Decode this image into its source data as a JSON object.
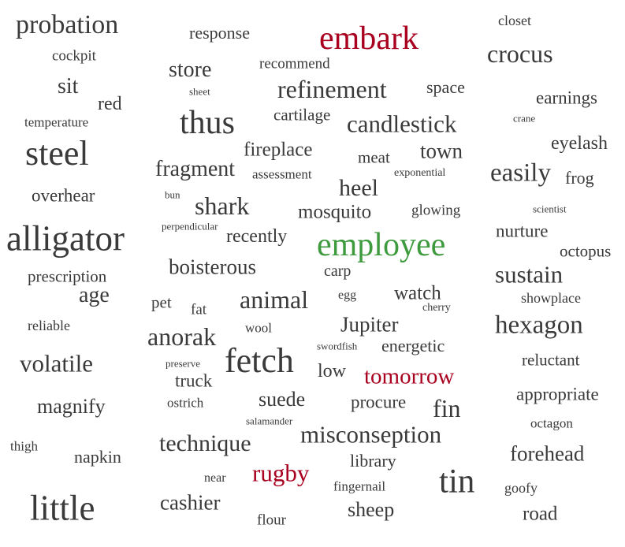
{
  "colors": {
    "default": "#3a3a3a",
    "red": "#a8001e",
    "green": "#3d9a3d"
  },
  "words": [
    {
      "text": "probation",
      "color": "default"
    },
    {
      "text": "response",
      "color": "default"
    },
    {
      "text": "embark",
      "color": "red"
    },
    {
      "text": "closet",
      "color": "default"
    },
    {
      "text": "cockpit",
      "color": "default"
    },
    {
      "text": "recommend",
      "color": "default"
    },
    {
      "text": "store",
      "color": "default"
    },
    {
      "text": "crocus",
      "color": "default"
    },
    {
      "text": "sit",
      "color": "default"
    },
    {
      "text": "sheet",
      "color": "default"
    },
    {
      "text": "refinement",
      "color": "default"
    },
    {
      "text": "space",
      "color": "default"
    },
    {
      "text": "red",
      "color": "default"
    },
    {
      "text": "earnings",
      "color": "default"
    },
    {
      "text": "cartilage",
      "color": "default"
    },
    {
      "text": "temperature",
      "color": "default"
    },
    {
      "text": "thus",
      "color": "default"
    },
    {
      "text": "candlestick",
      "color": "default"
    },
    {
      "text": "crane",
      "color": "default"
    },
    {
      "text": "eyelash",
      "color": "default"
    },
    {
      "text": "steel",
      "color": "default"
    },
    {
      "text": "fireplace",
      "color": "default"
    },
    {
      "text": "town",
      "color": "default"
    },
    {
      "text": "meat",
      "color": "default"
    },
    {
      "text": "fragment",
      "color": "default"
    },
    {
      "text": "assessment",
      "color": "default"
    },
    {
      "text": "exponential",
      "color": "default"
    },
    {
      "text": "easily",
      "color": "default"
    },
    {
      "text": "frog",
      "color": "default"
    },
    {
      "text": "heel",
      "color": "default"
    },
    {
      "text": "overhear",
      "color": "default"
    },
    {
      "text": "bun",
      "color": "default"
    },
    {
      "text": "shark",
      "color": "default"
    },
    {
      "text": "mosquito",
      "color": "default"
    },
    {
      "text": "glowing",
      "color": "default"
    },
    {
      "text": "scientist",
      "color": "default"
    },
    {
      "text": "perpendicular",
      "color": "default"
    },
    {
      "text": "nurture",
      "color": "default"
    },
    {
      "text": "alligator",
      "color": "default"
    },
    {
      "text": "recently",
      "color": "default"
    },
    {
      "text": "employee",
      "color": "green"
    },
    {
      "text": "octopus",
      "color": "default"
    },
    {
      "text": "boisterous",
      "color": "default"
    },
    {
      "text": "carp",
      "color": "default"
    },
    {
      "text": "prescription",
      "color": "default"
    },
    {
      "text": "sustain",
      "color": "default"
    },
    {
      "text": "age",
      "color": "default"
    },
    {
      "text": "egg",
      "color": "default"
    },
    {
      "text": "watch",
      "color": "default"
    },
    {
      "text": "animal",
      "color": "default"
    },
    {
      "text": "showplace",
      "color": "default"
    },
    {
      "text": "pet",
      "color": "default"
    },
    {
      "text": "fat",
      "color": "default"
    },
    {
      "text": "cherry",
      "color": "default"
    },
    {
      "text": "Jupiter",
      "color": "default"
    },
    {
      "text": "reliable",
      "color": "default"
    },
    {
      "text": "wool",
      "color": "default"
    },
    {
      "text": "hexagon",
      "color": "default"
    },
    {
      "text": "anorak",
      "color": "default"
    },
    {
      "text": "swordfish",
      "color": "default"
    },
    {
      "text": "energetic",
      "color": "default"
    },
    {
      "text": "fetch",
      "color": "default"
    },
    {
      "text": "volatile",
      "color": "default"
    },
    {
      "text": "reluctant",
      "color": "default"
    },
    {
      "text": "preserve",
      "color": "default"
    },
    {
      "text": "low",
      "color": "default"
    },
    {
      "text": "tomorrow",
      "color": "red"
    },
    {
      "text": "truck",
      "color": "default"
    },
    {
      "text": "appropriate",
      "color": "default"
    },
    {
      "text": "suede",
      "color": "default"
    },
    {
      "text": "magnify",
      "color": "default"
    },
    {
      "text": "ostrich",
      "color": "default"
    },
    {
      "text": "procure",
      "color": "default"
    },
    {
      "text": "fin",
      "color": "default"
    },
    {
      "text": "salamander",
      "color": "default"
    },
    {
      "text": "octagon",
      "color": "default"
    },
    {
      "text": "misconseption",
      "color": "default"
    },
    {
      "text": "thigh",
      "color": "default"
    },
    {
      "text": "technique",
      "color": "default"
    },
    {
      "text": "napkin",
      "color": "default"
    },
    {
      "text": "forehead",
      "color": "default"
    },
    {
      "text": "library",
      "color": "default"
    },
    {
      "text": "rugby",
      "color": "red"
    },
    {
      "text": "tin",
      "color": "default"
    },
    {
      "text": "near",
      "color": "default"
    },
    {
      "text": "goofy",
      "color": "default"
    },
    {
      "text": "fingernail",
      "color": "default"
    },
    {
      "text": "little",
      "color": "default"
    },
    {
      "text": "cashier",
      "color": "default"
    },
    {
      "text": "sheep",
      "color": "default"
    },
    {
      "text": "road",
      "color": "default"
    },
    {
      "text": "flour",
      "color": "default"
    }
  ]
}
